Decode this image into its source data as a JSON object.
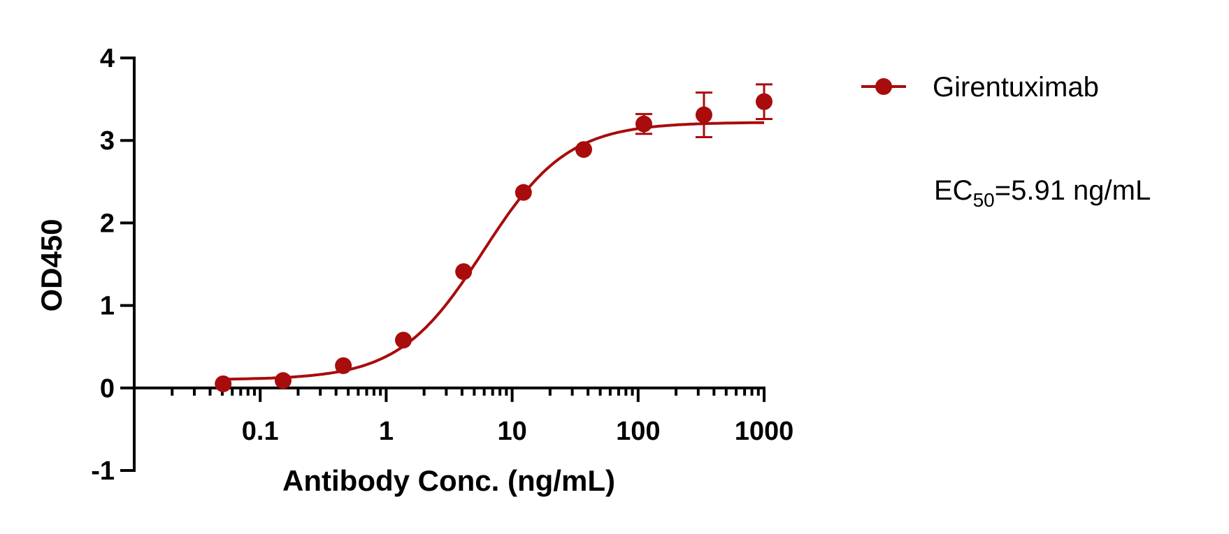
{
  "chart_data": {
    "type": "dose-response",
    "xlabel": "Antibody Conc. (ng/mL)",
    "ylabel": "OD450",
    "xscale": "log",
    "xlim": [
      0.01,
      1000
    ],
    "xticks": [
      0.1,
      1,
      10,
      100,
      1000
    ],
    "ylim": [
      -1,
      4
    ],
    "yticks": [
      -1,
      0,
      1,
      2,
      3,
      4
    ],
    "x": [
      0.0508,
      0.152,
      0.457,
      1.37,
      4.12,
      12.3,
      37,
      111,
      333,
      1000
    ],
    "series": [
      {
        "name": "Girentuximab",
        "color": "#a80c0c",
        "values": [
          0.05,
          0.09,
          0.27,
          0.58,
          1.41,
          2.37,
          2.89,
          3.2,
          3.31,
          3.47
        ],
        "errors": [
          null,
          null,
          null,
          null,
          null,
          null,
          null,
          0.12,
          0.27,
          0.21
        ]
      }
    ],
    "fit": {
      "bottom": 0.1,
      "top": 3.22,
      "hill": 1.3,
      "ec50": 5.91
    },
    "annotation": {
      "main": "EC",
      "subscript": "50",
      "rest": "=5.91 ng/mL"
    },
    "legend": "top-right"
  }
}
